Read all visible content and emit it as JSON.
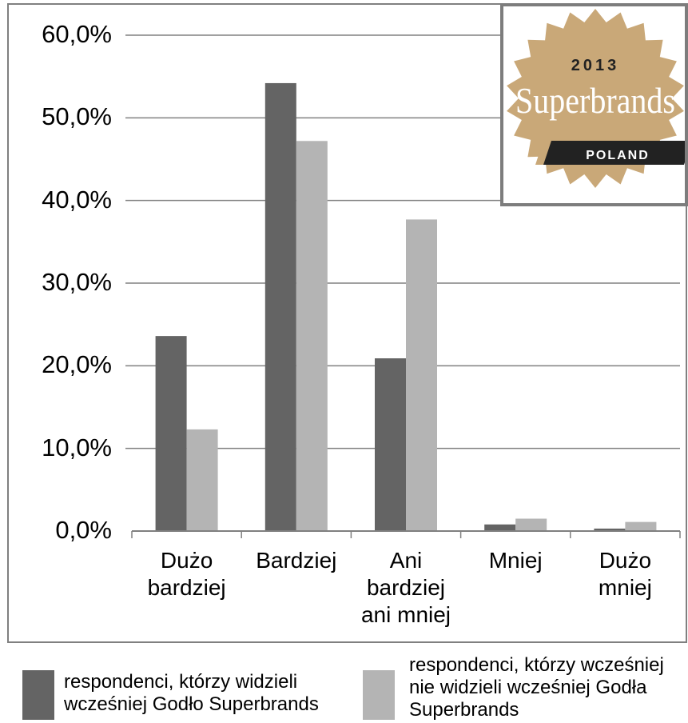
{
  "chart_data": {
    "type": "bar",
    "categories": [
      "Dużo\nbardziej",
      "Bardziej",
      "Ani\nbardziej\nani mniej",
      "Mniej",
      "Dużo\nmniej"
    ],
    "series": [
      {
        "name": "respondenci, którzy widzieli wcześniej Godło Superbrands",
        "values": [
          23.6,
          54.2,
          20.9,
          0.8,
          0.3
        ],
        "color": "#646464"
      },
      {
        "name": "respondenci, którzy wcześniej nie widzieli wcześniej Godła Superbrands",
        "values": [
          12.3,
          47.2,
          37.7,
          1.5,
          1.1
        ],
        "color": "#b4b4b4"
      }
    ],
    "ylim": [
      0,
      60
    ],
    "yticks": [
      "0,0%",
      "10,0%",
      "20,0%",
      "30,0%",
      "40,0%",
      "50,0%",
      "60,0%"
    ],
    "grid": true,
    "legend_position": "bottom"
  },
  "badge": {
    "year": "2013",
    "brand": "Superbrands",
    "country": "POLAND",
    "gold_color": "#c9a878",
    "ribbon_color": "#222222"
  },
  "legend": {
    "item1": "respondenci, którzy widzieli\nwcześniej Godło Superbrands",
    "item2": "respondenci, którzy wcześniej\nnie widzieli wcześniej Godła\nSuperbrands"
  }
}
